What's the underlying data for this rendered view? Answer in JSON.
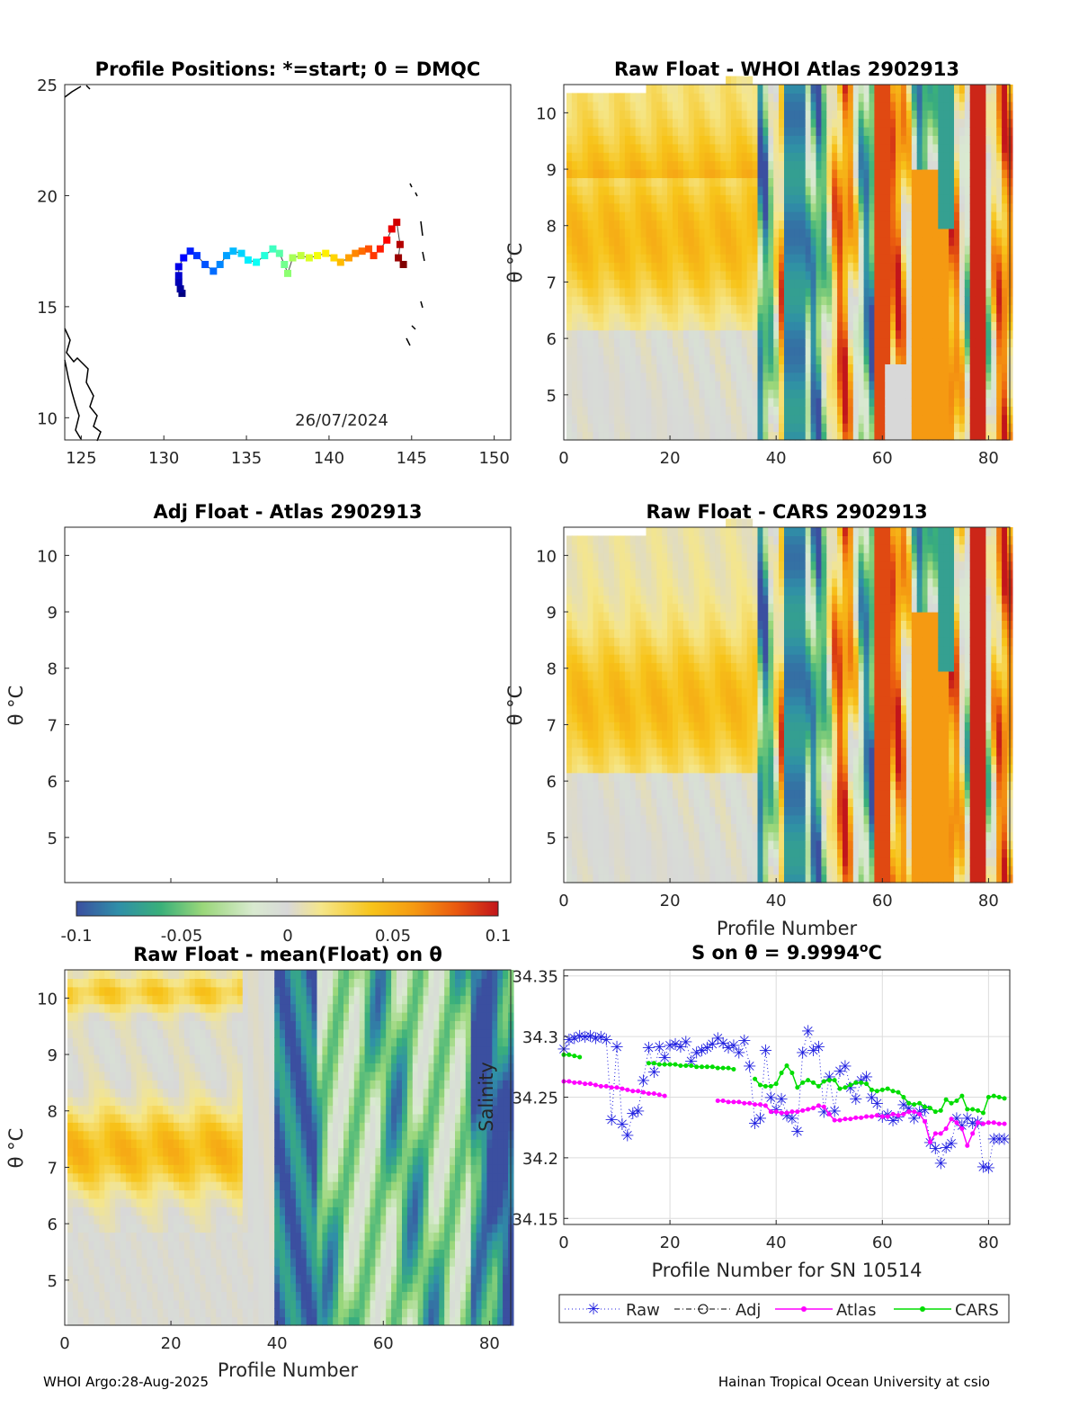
{
  "footer": {
    "left": "WHOI Argo:28-Aug-2025",
    "right": "Hainan Tropical Ocean University at csio"
  },
  "colorbar": {
    "min": -0.1,
    "max": 0.1,
    "ticks": [
      "-0.1",
      "-0.05",
      "0",
      "0.05",
      "0.1"
    ],
    "colors": [
      "#3b4fa0",
      "#2f8fa8",
      "#3ab07a",
      "#9ad77a",
      "#d9ead0",
      "#d8d8d8",
      "#f5e68a",
      "#f7c41a",
      "#f59a12",
      "#ea5a0f",
      "#c2151b"
    ]
  },
  "chart_data": [
    {
      "id": "positions",
      "type": "scatter",
      "title": "Profile Positions: *=start; 0 = DMQC",
      "date_label": "26/07/2024",
      "xlim": [
        124,
        151
      ],
      "ylim": [
        9,
        25
      ],
      "xticks": [
        "125",
        "130",
        "135",
        "140",
        "145",
        "150"
      ],
      "yticks": [
        "10",
        "15",
        "20",
        "25"
      ],
      "track": [
        [
          131.1,
          15.6
        ],
        [
          131.0,
          15.8
        ],
        [
          130.9,
          16.1
        ],
        [
          130.9,
          16.4
        ],
        [
          130.9,
          16.8
        ],
        [
          131.2,
          17.2
        ],
        [
          131.6,
          17.5
        ],
        [
          132.0,
          17.3
        ],
        [
          132.5,
          16.9
        ],
        [
          133.0,
          16.6
        ],
        [
          133.4,
          16.9
        ],
        [
          133.8,
          17.3
        ],
        [
          134.2,
          17.5
        ],
        [
          134.7,
          17.4
        ],
        [
          135.1,
          17.1
        ],
        [
          135.6,
          17.0
        ],
        [
          136.1,
          17.3
        ],
        [
          136.6,
          17.6
        ],
        [
          137.0,
          17.4
        ],
        [
          137.3,
          16.9
        ],
        [
          137.5,
          16.5
        ],
        [
          137.8,
          17.2
        ],
        [
          138.3,
          17.3
        ],
        [
          138.8,
          17.2
        ],
        [
          139.3,
          17.3
        ],
        [
          139.8,
          17.4
        ],
        [
          140.3,
          17.2
        ],
        [
          140.7,
          17.0
        ],
        [
          141.2,
          17.2
        ],
        [
          141.6,
          17.4
        ],
        [
          142.0,
          17.5
        ],
        [
          142.4,
          17.6
        ],
        [
          142.7,
          17.3
        ],
        [
          143.1,
          17.6
        ],
        [
          143.5,
          18.0
        ],
        [
          143.8,
          18.5
        ],
        [
          144.1,
          18.8
        ],
        [
          144.3,
          17.8
        ],
        [
          144.2,
          17.2
        ],
        [
          144.5,
          16.9
        ]
      ]
    },
    {
      "id": "raw_whoi",
      "type": "heatmap",
      "title": "Raw Float - WHOI Atlas  2902913",
      "ylabel": "θ °C",
      "xlim": [
        0,
        84
      ],
      "ylim": [
        4.2,
        10.5
      ],
      "xticks": [
        "0",
        "20",
        "40",
        "60",
        "80"
      ],
      "yticks": [
        "5",
        "6",
        "7",
        "8",
        "9",
        "10"
      ]
    },
    {
      "id": "adj_atlas",
      "type": "heatmap",
      "title": "Adj Float - Atlas  2902913",
      "ylabel": "θ °C",
      "xlim": [
        0,
        84
      ],
      "ylim": [
        4.2,
        10.5
      ],
      "yticks": [
        "5",
        "6",
        "7",
        "8",
        "9",
        "10"
      ]
    },
    {
      "id": "raw_cars",
      "type": "heatmap",
      "title": "Raw Float - CARS  2902913",
      "ylabel": "θ °C",
      "xlabel": "Profile Number",
      "xlim": [
        0,
        84
      ],
      "ylim": [
        4.2,
        10.5
      ],
      "xticks": [
        "0",
        "20",
        "40",
        "60",
        "80"
      ],
      "yticks": [
        "5",
        "6",
        "7",
        "8",
        "9",
        "10"
      ]
    },
    {
      "id": "raw_mean",
      "type": "heatmap",
      "title": "Raw Float - mean(Float) on θ",
      "ylabel": "θ °C",
      "xlabel": "Profile Number",
      "xlim": [
        0,
        84
      ],
      "ylim": [
        4.2,
        10.5
      ],
      "xticks": [
        "0",
        "20",
        "40",
        "60",
        "80"
      ],
      "yticks": [
        "5",
        "6",
        "7",
        "8",
        "9",
        "10"
      ]
    },
    {
      "id": "salinity",
      "type": "line",
      "title": "S on θ = 9.9994°C",
      "title_main": "S on θ = 9.9994",
      "title_sup": "o",
      "title_end": "C",
      "xlabel": "Profile Number for SN 10514",
      "ylabel": "Salinity",
      "xlim": [
        0,
        84
      ],
      "ylim": [
        34.145,
        34.355
      ],
      "xticks": [
        "0",
        "20",
        "40",
        "60",
        "80"
      ],
      "yticks": [
        "34.15",
        "34.2",
        "34.25",
        "34.3",
        "34.35"
      ],
      "legend": [
        "Raw",
        "Adj",
        "Atlas",
        "CARS"
      ],
      "series": [
        {
          "name": "Raw",
          "color": "#2020e0",
          "x": [
            0,
            1,
            2,
            3,
            4,
            5,
            6,
            7,
            8,
            9,
            10,
            11,
            12,
            13,
            14,
            15,
            16,
            17,
            18,
            19,
            20,
            21,
            22,
            23,
            24,
            25,
            26,
            27,
            28,
            29,
            30,
            31,
            32,
            33,
            34,
            35,
            36,
            37,
            38,
            39,
            40,
            41,
            42,
            43,
            44,
            45,
            46,
            47,
            48,
            49,
            50,
            51,
            52,
            53,
            54,
            55,
            56,
            57,
            58,
            59,
            60,
            61,
            62,
            63,
            64,
            65,
            66,
            67,
            68,
            69,
            70,
            71,
            72,
            73,
            74,
            75,
            76,
            77,
            78,
            79,
            80,
            81,
            82,
            83
          ],
          "y": [
            34.29,
            34.298,
            34.299,
            34.301,
            34.3,
            34.301,
            34.299,
            34.3,
            34.298,
            34.232,
            34.292,
            34.228,
            34.219,
            34.237,
            34.239,
            34.264,
            34.291,
            34.271,
            34.292,
            34.283,
            34.293,
            34.294,
            34.292,
            34.296,
            34.28,
            34.287,
            34.289,
            34.291,
            34.294,
            34.299,
            34.295,
            34.291,
            34.293,
            34.287,
            34.297,
            34.276,
            34.229,
            34.233,
            34.289,
            34.25,
            34.24,
            34.249,
            34.235,
            34.233,
            34.222,
            34.287,
            34.305,
            34.289,
            34.292,
            34.238,
            34.267,
            34.239,
            34.272,
            34.276,
            34.258,
            34.249,
            34.264,
            34.267,
            34.25,
            34.245,
            34.234,
            34.236,
            34.231,
            34.234,
            34.244,
            34.241,
            34.233,
            34.238,
            34.24,
            34.213,
            34.208,
            34.196,
            34.209,
            34.212,
            34.233,
            34.227,
            34.233,
            34.229,
            34.23,
            34.193,
            34.192,
            34.216,
            34.216,
            34.216
          ]
        },
        {
          "name": "Atlas",
          "color": "#ff00ff",
          "x": [
            0,
            1,
            2,
            3,
            4,
            5,
            6,
            7,
            8,
            9,
            10,
            11,
            12,
            13,
            14,
            15,
            16,
            17,
            18,
            19,
            29,
            30,
            31,
            32,
            33,
            34,
            35,
            36,
            37,
            38,
            39,
            40,
            41,
            42,
            43,
            44,
            45,
            46,
            47,
            48,
            49,
            50,
            51,
            52,
            53,
            54,
            55,
            56,
            57,
            58,
            59,
            60,
            61,
            62,
            63,
            64,
            65,
            66,
            67,
            68,
            69,
            70,
            71,
            72,
            73,
            74,
            75,
            76,
            77,
            78,
            79,
            80,
            81,
            82,
            83
          ],
          "y": [
            34.263,
            34.263,
            34.262,
            34.262,
            34.261,
            34.261,
            34.26,
            34.259,
            34.259,
            34.258,
            34.258,
            34.257,
            34.256,
            34.255,
            34.255,
            34.254,
            34.253,
            34.253,
            34.252,
            34.251,
            34.247,
            34.247,
            34.246,
            34.246,
            34.246,
            34.245,
            34.245,
            34.244,
            34.244,
            34.243,
            34.238,
            34.238,
            34.237,
            34.237,
            34.238,
            34.238,
            34.239,
            34.24,
            34.241,
            34.243,
            34.242,
            34.236,
            34.231,
            34.231,
            34.232,
            34.232,
            34.233,
            34.233,
            34.234,
            34.234,
            34.235,
            34.234,
            34.234,
            34.236,
            34.235,
            34.236,
            34.238,
            34.238,
            34.236,
            34.23,
            34.213,
            34.22,
            34.22,
            34.224,
            34.232,
            34.229,
            34.224,
            34.21,
            34.22,
            34.229,
            34.228,
            34.229,
            34.229,
            34.228,
            34.228
          ]
        },
        {
          "name": "CARS",
          "color": "#00dd00",
          "x": [
            0,
            1,
            2,
            3,
            16,
            17,
            18,
            19,
            20,
            21,
            22,
            23,
            24,
            25,
            26,
            27,
            28,
            29,
            30,
            31,
            32,
            36,
            37,
            38,
            39,
            40,
            41,
            42,
            43,
            44,
            45,
            46,
            47,
            48,
            49,
            50,
            51,
            52,
            53,
            54,
            55,
            56,
            57,
            58,
            59,
            60,
            61,
            62,
            63,
            64,
            65,
            66,
            67,
            68,
            69,
            70,
            71,
            72,
            73,
            74,
            75,
            76,
            77,
            78,
            79,
            80,
            81,
            82,
            83
          ],
          "y": [
            34.285,
            34.285,
            34.284,
            34.283,
            34.278,
            34.278,
            34.277,
            34.277,
            34.277,
            34.277,
            34.276,
            34.276,
            34.276,
            34.275,
            34.275,
            34.275,
            34.275,
            34.274,
            34.274,
            34.274,
            34.273,
            34.265,
            34.26,
            34.259,
            34.259,
            34.261,
            34.27,
            34.276,
            34.27,
            34.258,
            34.262,
            34.264,
            34.262,
            34.259,
            34.263,
            34.264,
            34.264,
            34.257,
            34.258,
            34.26,
            34.262,
            34.262,
            34.261,
            34.256,
            34.255,
            34.256,
            34.257,
            34.255,
            34.254,
            34.25,
            34.245,
            34.244,
            34.245,
            34.242,
            34.241,
            34.238,
            34.239,
            34.248,
            34.245,
            34.247,
            34.251,
            34.24,
            34.24,
            34.239,
            34.237,
            34.25,
            34.251,
            34.25,
            34.249
          ]
        }
      ]
    }
  ]
}
